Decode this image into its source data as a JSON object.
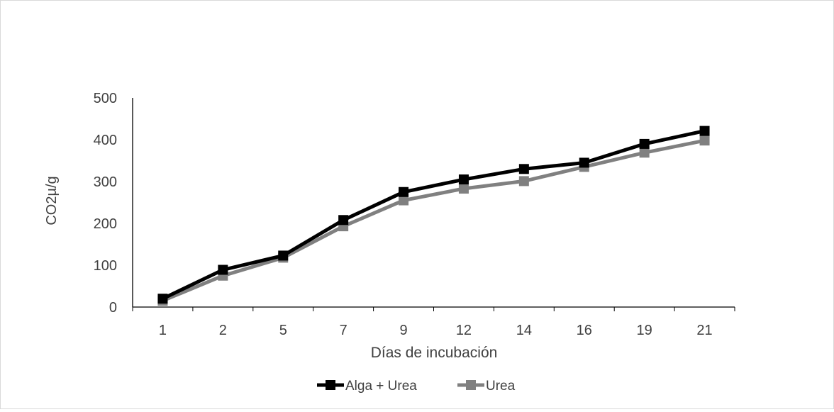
{
  "chart_data": {
    "type": "line",
    "title": "",
    "xlabel": "Días de incubación",
    "ylabel": "CO2µ/g",
    "categories": [
      "1",
      "2",
      "5",
      "7",
      "9",
      "12",
      "14",
      "16",
      "19",
      "21"
    ],
    "ylim": [
      0,
      500
    ],
    "yticks": [
      0,
      100,
      200,
      300,
      400,
      500
    ],
    "grid": false,
    "legend_position": "bottom",
    "series": [
      {
        "name": "Alga + Urea",
        "color": "#000000",
        "marker": "square",
        "values": [
          20,
          89,
          123,
          208,
          275,
          305,
          330,
          345,
          390,
          421
        ]
      },
      {
        "name": "Urea",
        "color": "#808080",
        "marker": "square",
        "values": [
          15,
          75,
          118,
          193,
          255,
          283,
          301,
          335,
          369,
          398
        ]
      }
    ]
  }
}
